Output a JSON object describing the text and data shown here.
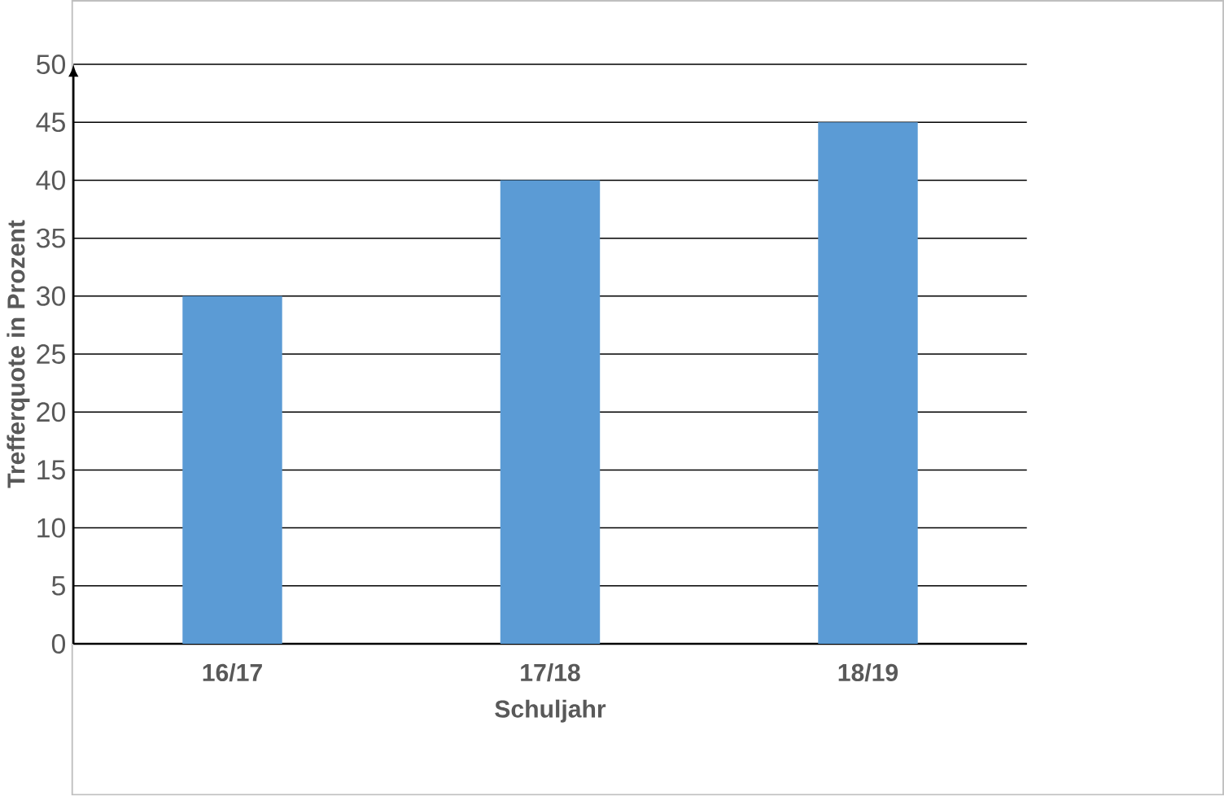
{
  "chart_data": {
    "type": "bar",
    "xlabel": "Schuljahr",
    "ylabel": "Trefferquote in Prozent",
    "categories": [
      "16/17",
      "17/18",
      "18/19"
    ],
    "values": [
      30,
      40,
      45
    ],
    "color": "#5b9bd5",
    "ylim": [
      0,
      50
    ],
    "yticks": [
      0,
      5,
      10,
      15,
      20,
      25,
      30,
      35,
      40,
      45,
      50
    ],
    "grid": "y"
  }
}
